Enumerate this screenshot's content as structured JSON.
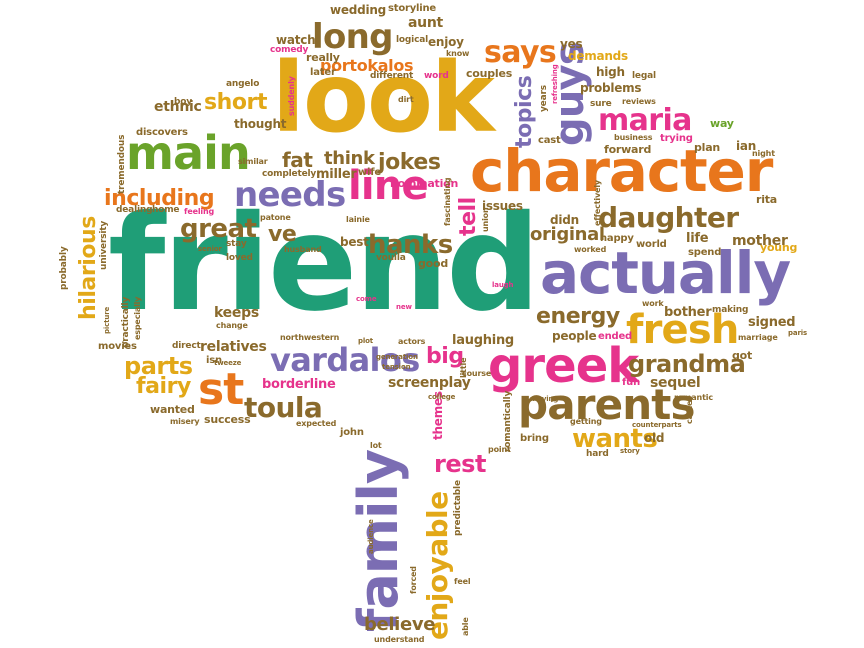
{
  "colors": {
    "orange": "#e8761c",
    "green": "#6aa32a",
    "teal": "#1f9e77",
    "purple": "#7b6db3",
    "brown": "#8a6a2c",
    "mustard": "#d99f1a",
    "pink": "#e6338c",
    "gold": "#e2a818"
  },
  "words": [
    "friend",
    "look",
    "character",
    "actually",
    "family",
    "greek",
    "main",
    "parents",
    "line",
    "needs",
    "fresh",
    "says",
    "guys",
    "long",
    "daughter",
    "enjoyable",
    "vardalos",
    "st",
    "maria",
    "including",
    "great",
    "hanks",
    "toula",
    "rest",
    "wants",
    "energy",
    "grandma",
    "jokes",
    "short",
    "original",
    "hilarious",
    "topics",
    "fat",
    "think",
    "believe",
    "portokalos",
    "tell",
    "parts",
    "fairy",
    "big",
    "ve",
    "keeps",
    "relatives",
    "borderline",
    "screenplay",
    "laughing",
    "sequel",
    "signed",
    "mother",
    "bother",
    "life",
    "ethnic",
    "thought",
    "wedding",
    "aunt",
    "storyline",
    "watch",
    "enjoy",
    "really",
    "logical",
    "comedy",
    "know",
    "yes",
    "demands",
    "high",
    "legal",
    "problems",
    "couples",
    "later",
    "different",
    "word",
    "angelo",
    "suddenly",
    "boy",
    "discovers",
    "tremendous",
    "dealing",
    "home",
    "feeling",
    "similar",
    "completely",
    "miller",
    "wife",
    "nomination",
    "fascinating",
    "issues",
    "union",
    "didn",
    "happy",
    "world",
    "worked",
    "effectively",
    "young",
    "spend",
    "making",
    "work",
    "romantic",
    "counterparts",
    "came",
    "sure",
    "reviews",
    "way",
    "business",
    "trying",
    "plan",
    "ian",
    "night",
    "rita",
    "forward",
    "cast",
    "years",
    "refreshing",
    "dirt",
    "lainie",
    "best",
    "husband",
    "voulla",
    "good",
    "patone",
    "stay",
    "senior",
    "loved",
    "university",
    "probably",
    "picture",
    "practically",
    "especially",
    "movies",
    "direct",
    "isn",
    "change",
    "northwestern",
    "plot",
    "actors",
    "wanted",
    "misery",
    "success",
    "expected",
    "john",
    "lot",
    "themes",
    "point",
    "bring",
    "getting",
    "hard",
    "story",
    "tension",
    "generation",
    "moving",
    "romantically",
    "predictable",
    "forced",
    "little",
    "course",
    "college",
    "feel",
    "understand",
    "able",
    "audience",
    "tweeze",
    "new",
    "come",
    "laugh",
    "got",
    "marriage",
    "paris",
    "old",
    "people",
    "ended",
    "fun"
  ]
}
